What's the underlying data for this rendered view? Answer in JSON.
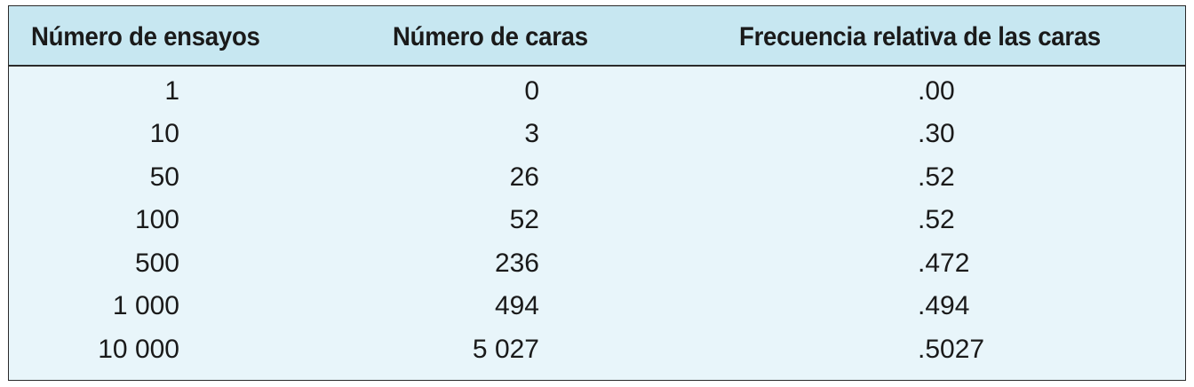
{
  "table": {
    "headers": [
      "Número de ensayos",
      "Número de caras",
      "Frecuencia relativa de las caras"
    ],
    "rows": [
      [
        "1",
        "0",
        ".00"
      ],
      [
        "10",
        "3",
        ".30"
      ],
      [
        "50",
        "26",
        ".52"
      ],
      [
        "100",
        "52",
        ".52"
      ],
      [
        "500",
        "236",
        ".472"
      ],
      [
        "1 000",
        "494",
        ".494"
      ],
      [
        "10 000",
        "5 027",
        ".5027"
      ]
    ]
  },
  "colors": {
    "header_background": "#c7e7f1",
    "body_background": "#e8f5fa",
    "border": "#2a2a2a",
    "text": "#1a1a1a"
  }
}
